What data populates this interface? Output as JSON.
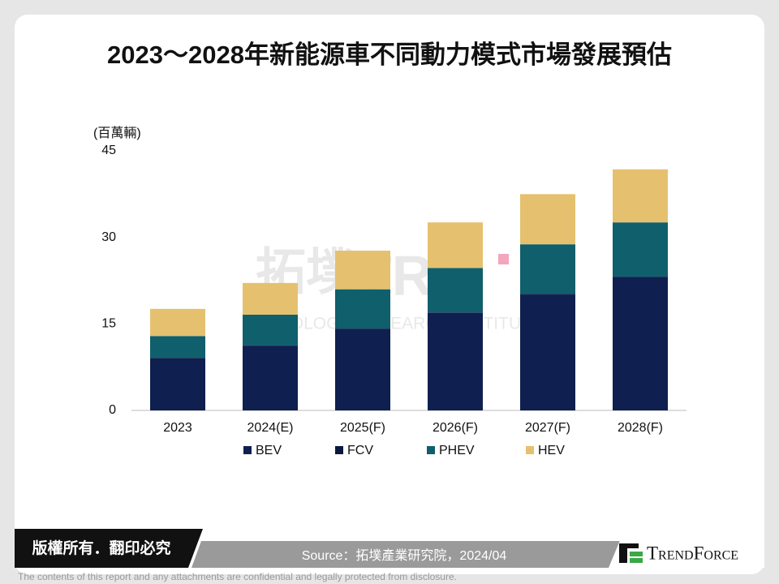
{
  "chart_data": {
    "type": "stacked-bar",
    "title": "2023～2028年新能源車不同動力模式市場發展預估",
    "y_label": "(百萬輛)",
    "categories": [
      "2023",
      "2024(E)",
      "2025(F)",
      "2026(F)",
      "2027(F)",
      "2028(F)"
    ],
    "series": [
      {
        "name": "BEV",
        "color": "#0f1f4f",
        "values": [
          9.0,
          11.2,
          14.1,
          16.9,
          20.1,
          23.1
        ]
      },
      {
        "name": "FCV",
        "color": "#0a1840",
        "values": [
          0.1,
          0.1,
          0.1,
          0.1,
          0.1,
          0.1
        ]
      },
      {
        "name": "PHEV",
        "color": "#0f5f6d",
        "values": [
          3.8,
          5.3,
          6.8,
          7.7,
          8.6,
          9.4
        ]
      },
      {
        "name": "HEV",
        "color": "#e5c16f",
        "values": [
          4.7,
          5.5,
          6.7,
          7.9,
          8.7,
          9.2
        ]
      }
    ],
    "ylim": [
      0,
      45
    ],
    "yticks": [
      0,
      15,
      30,
      45
    ],
    "grid": false,
    "legend": "bottom"
  },
  "watermark": {
    "logo": "拓墣",
    "mark": "TRI",
    "institute": "TOPOLOGY RESEARCH INSTITUTE"
  },
  "footer": {
    "copyright": "版權所有．翻印必究",
    "source": "Source：拓墣產業研究院，2024/04",
    "brand": "TrendForce",
    "disclaimer": "The contents of this report and any attachments are confidential and legally protected from disclosure."
  }
}
